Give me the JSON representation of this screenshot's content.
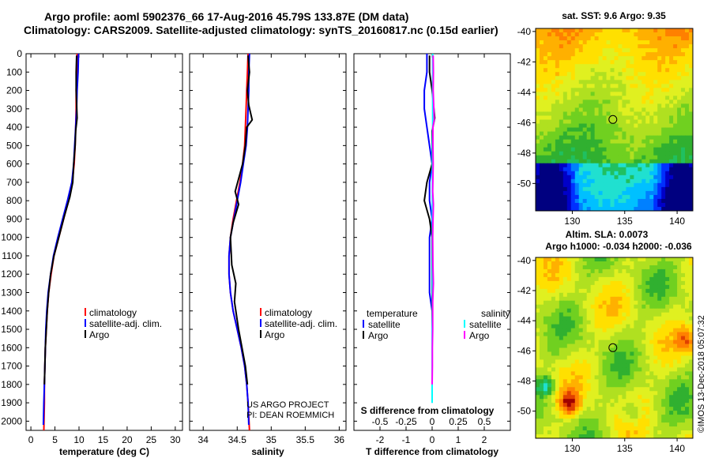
{
  "header": {
    "line1": "Argo profile: aoml 5902376_66 17-Aug-2016 45.79S 133.87E (DM data)",
    "line2": "Climatology: CARS2009. Satellite-adjusted climatology: synTS_20160817.nc (0.15d earlier)"
  },
  "colors": {
    "climatology": "#ff0000",
    "satellite": "#0000ff",
    "argo": "#000000",
    "argo_salinity_diff": "#ff00ff",
    "satellite_salinity_diff": "#00ffff"
  },
  "chart_data": [
    {
      "type": "line",
      "id": "temperature",
      "xlabel": "temperature (deg C)",
      "ylabel": "depth",
      "xlim": [
        -1,
        31.5
      ],
      "ylim": [
        2050,
        0
      ],
      "xticks": [
        0,
        5,
        10,
        15,
        20,
        25,
        30
      ],
      "xtick_labels": [
        "0",
        "5",
        "10",
        "15",
        "20",
        "25",
        "30"
      ],
      "yticks": [
        0,
        100,
        200,
        300,
        400,
        500,
        600,
        700,
        800,
        900,
        1000,
        1100,
        1200,
        1300,
        1400,
        1500,
        1600,
        1700,
        1800,
        1900,
        2000
      ],
      "ytick_labels": [
        "0",
        "100",
        "200",
        "300",
        "400",
        "500",
        "600",
        "700",
        "800",
        "900",
        "1000",
        "1100",
        "1200",
        "1300",
        "1400",
        "1500",
        "1600",
        "1700",
        "1800",
        "1900",
        "2000"
      ],
      "legend": [
        "climatology",
        "satellite-adj. clim.",
        "Argo"
      ],
      "series": [
        {
          "name": "climatology",
          "color_key": "climatology",
          "x": [
            9.6,
            9.5,
            9.4,
            9.4,
            9.3,
            9.2,
            9.0,
            8.6,
            7.8,
            6.8,
            5.8,
            4.8,
            4.2,
            3.7,
            3.4,
            3.2,
            3.0,
            2.9,
            2.8,
            2.8,
            2.7
          ],
          "y": [
            0,
            100,
            200,
            300,
            400,
            500,
            600,
            700,
            800,
            900,
            1000,
            1100,
            1200,
            1300,
            1400,
            1500,
            1600,
            1700,
            1800,
            1900,
            2050
          ]
        },
        {
          "name": "satellite-adj. clim.",
          "color_key": "satellite",
          "x": [
            9.9,
            9.8,
            9.6,
            9.5,
            9.3,
            9.1,
            8.9,
            8.5,
            7.6,
            6.6,
            5.6,
            4.7,
            4.1,
            3.6,
            3.3,
            3.1,
            3.0,
            2.9,
            2.8,
            2.7,
            2.6
          ],
          "y": [
            0,
            100,
            200,
            300,
            400,
            500,
            600,
            700,
            800,
            900,
            1000,
            1100,
            1200,
            1300,
            1400,
            1500,
            1600,
            1700,
            1800,
            1900,
            2020
          ]
        },
        {
          "name": "Argo",
          "color_key": "argo",
          "x": [
            9.5,
            9.4,
            9.4,
            9.6,
            9.3,
            9.2,
            8.9,
            8.7,
            8.1,
            7.0,
            5.8,
            4.8,
            4.1,
            3.7,
            3.4,
            3.2,
            3.0,
            2.9,
            2.8
          ],
          "y": [
            10,
            100,
            200,
            350,
            420,
            500,
            600,
            700,
            780,
            880,
            1000,
            1100,
            1200,
            1300,
            1400,
            1500,
            1600,
            1700,
            1800
          ]
        }
      ]
    },
    {
      "type": "line",
      "id": "salinity",
      "xlabel": "salinity",
      "ylabel": "depth",
      "xlim": [
        33.8,
        36.1
      ],
      "ylim": [
        2050,
        0
      ],
      "xticks": [
        34,
        34.5,
        35,
        35.5,
        36
      ],
      "xtick_labels": [
        "34",
        "34.5",
        "35",
        "35.5",
        "36"
      ],
      "legend": [
        "climatology",
        "satellite-adj. clim.",
        "Argo"
      ],
      "annotation": [
        "US ARGO PROJECT",
        "PI: DEAN ROEMMICH"
      ],
      "series": [
        {
          "name": "climatology",
          "color_key": "climatology",
          "x": [
            34.66,
            34.65,
            34.64,
            34.63,
            34.62,
            34.61,
            34.58,
            34.54,
            34.49,
            34.44,
            34.4,
            34.38,
            34.38,
            34.4,
            34.44,
            34.5,
            34.56,
            34.61,
            34.64,
            34.66,
            34.68
          ],
          "y": [
            0,
            100,
            200,
            300,
            400,
            500,
            600,
            700,
            800,
            900,
            1000,
            1100,
            1200,
            1300,
            1400,
            1500,
            1600,
            1700,
            1800,
            1900,
            2050
          ]
        },
        {
          "name": "satellite-adj. clim.",
          "color_key": "satellite",
          "x": [
            34.68,
            34.67,
            34.67,
            34.66,
            34.65,
            34.63,
            34.59,
            34.55,
            34.5,
            34.45,
            34.4,
            34.38,
            34.38,
            34.4,
            34.44,
            34.5,
            34.56,
            34.61,
            34.64,
            34.66,
            34.67
          ],
          "y": [
            0,
            100,
            200,
            300,
            400,
            500,
            600,
            700,
            800,
            900,
            1000,
            1100,
            1200,
            1300,
            1400,
            1500,
            1600,
            1700,
            1800,
            1900,
            2020
          ]
        },
        {
          "name": "Argo",
          "color_key": "argo",
          "x": [
            34.66,
            34.68,
            34.65,
            34.67,
            34.72,
            34.64,
            34.62,
            34.58,
            34.47,
            34.52,
            34.44,
            34.4,
            34.42,
            34.48,
            34.46,
            34.52,
            34.57,
            34.62,
            34.65
          ],
          "y": [
            10,
            100,
            200,
            280,
            360,
            400,
            500,
            600,
            750,
            820,
            920,
            1000,
            1150,
            1250,
            1350,
            1500,
            1600,
            1700,
            1800
          ]
        }
      ]
    },
    {
      "type": "line",
      "id": "difference",
      "xlabel": "T difference from climatology",
      "xlim": [
        -3,
        3
      ],
      "ylim": [
        2050,
        0
      ],
      "xticks": [
        -2,
        -1,
        0,
        1,
        2
      ],
      "xtick_labels": [
        "-2",
        "-1",
        "0",
        "1",
        "2"
      ],
      "top_ticks_label": "S difference from climatology",
      "top_tick_labels": [
        "-0.5",
        "-0.25",
        "0",
        "0.25",
        "0.5"
      ],
      "legend_left_title": "temperature",
      "legend_left": [
        "satellite",
        "Argo"
      ],
      "legend_right_title": "salinity",
      "legend_right": [
        "satellite",
        "Argo"
      ],
      "series": [
        {
          "name": "temperature satellite",
          "color_key": "satellite",
          "x": [
            -0.2,
            -0.2,
            -0.3,
            -0.3,
            -0.2,
            -0.1,
            0.0,
            -0.1,
            -0.1,
            0.0,
            -0.1,
            -0.1,
            -0.1,
            -0.1,
            0.0,
            0.0,
            0.0,
            0.0,
            0.0,
            0.0
          ],
          "y": [
            0,
            100,
            200,
            300,
            400,
            500,
            600,
            700,
            800,
            900,
            1000,
            1100,
            1200,
            1300,
            1400,
            1500,
            1600,
            1700,
            1800,
            1900
          ]
        },
        {
          "name": "temperature Argo",
          "color_key": "argo",
          "x": [
            -0.1,
            -0.1,
            0.0,
            0.1,
            0.0,
            0.0,
            0.0,
            -0.2,
            -0.3,
            -0.1,
            0.0,
            0.0,
            0.0,
            0.0,
            0.0,
            0.0,
            0.0,
            0.0,
            0.0
          ],
          "y": [
            10,
            100,
            200,
            350,
            420,
            500,
            600,
            700,
            800,
            900,
            1000,
            1100,
            1200,
            1300,
            1400,
            1500,
            1600,
            1700,
            1800
          ]
        },
        {
          "name": "salinity satellite",
          "color_key": "satellite_salinity_diff",
          "x": [
            0.02,
            0.02,
            0.02,
            0.02,
            0.02,
            0.01,
            0.01,
            0.01,
            0.01,
            0.01,
            0.01,
            0.01,
            0.01,
            0.01,
            0.01,
            0.0,
            0.0,
            0.0,
            0.0,
            0.0
          ],
          "y": [
            0,
            100,
            200,
            300,
            400,
            500,
            600,
            700,
            800,
            900,
            1000,
            1100,
            1200,
            1300,
            1400,
            1500,
            1600,
            1700,
            1800,
            1900
          ]
        },
        {
          "name": "salinity Argo",
          "color_key": "argo_salinity_diff",
          "x": [
            0.04,
            0.05,
            0.04,
            0.06,
            0.08,
            0.03,
            0.03,
            0.04,
            0.02,
            0.05,
            0.03,
            0.02,
            0.03,
            0.05,
            0.02,
            0.02,
            0.01,
            0.01,
            0.0
          ],
          "y": [
            10,
            100,
            200,
            280,
            360,
            400,
            500,
            600,
            750,
            820,
            920,
            1000,
            1150,
            1250,
            1350,
            1500,
            1600,
            1700,
            1800
          ]
        }
      ]
    },
    {
      "type": "heatmap",
      "id": "sst_map",
      "title": "sat. SST: 9.6 Argo: 9.35",
      "xlim": [
        126.5,
        141.5
      ],
      "ylim": [
        -51.8,
        -39.8
      ],
      "xticks": [
        130,
        135,
        140
      ],
      "xtick_labels": [
        "130",
        "135",
        "140"
      ],
      "yticks": [
        -40,
        -42,
        -44,
        -46,
        -48,
        -50
      ],
      "ytick_labels": [
        "-40",
        "-42",
        "-44",
        "-46",
        "-48",
        "-50"
      ],
      "marker": {
        "lon": 133.87,
        "lat": -45.79
      }
    },
    {
      "type": "heatmap",
      "id": "sla_map",
      "title_line1": "Altim. SLA: 0.0073",
      "title_line2": "Argo h1000: -0.034 h2000: -0.036",
      "xlim": [
        126.5,
        141.5
      ],
      "ylim": [
        -51.8,
        -39.8
      ],
      "xticks": [
        130,
        135,
        140
      ],
      "xtick_labels": [
        "130",
        "135",
        "140"
      ],
      "yticks": [
        -40,
        -42,
        -44,
        -46,
        -48,
        -50
      ],
      "ytick_labels": [
        "-40",
        "-42",
        "-44",
        "-46",
        "-48",
        "-50"
      ],
      "marker": {
        "lon": 133.87,
        "lat": -45.79
      }
    }
  ],
  "footer": {
    "stamp": "©IMOS 13-Dec-2018 05:07:32"
  }
}
